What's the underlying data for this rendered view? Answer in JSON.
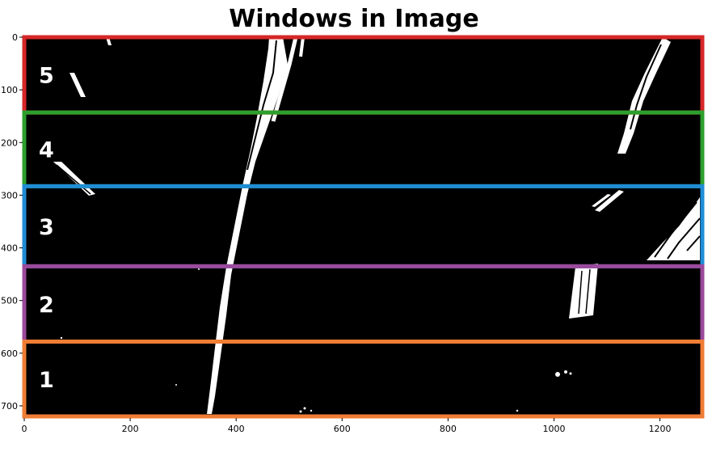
{
  "chart_data": {
    "type": "image",
    "title": "Windows in Image",
    "xlabel": "",
    "ylabel": "",
    "xlim": [
      0,
      1280
    ],
    "ylim": [
      720,
      0
    ],
    "x_ticks": [
      0,
      200,
      400,
      600,
      800,
      1000,
      1200
    ],
    "y_ticks": [
      0,
      100,
      200,
      300,
      400,
      500,
      600,
      700
    ],
    "image_description_colors": {
      "background": "#000000",
      "foreground": "#ffffff"
    },
    "windows": [
      {
        "label": "5",
        "y_range": [
          0,
          143
        ],
        "color": "#d62728"
      },
      {
        "label": "4",
        "y_range": [
          143,
          283
        ],
        "color": "#2ca02c"
      },
      {
        "label": "3",
        "y_range": [
          283,
          435
        ],
        "color": "#1f8dd6"
      },
      {
        "label": "2",
        "y_range": [
          435,
          578
        ],
        "color": "#9b4a9b"
      },
      {
        "label": "1",
        "y_range": [
          578,
          720
        ],
        "color": "#f07d34"
      }
    ]
  }
}
